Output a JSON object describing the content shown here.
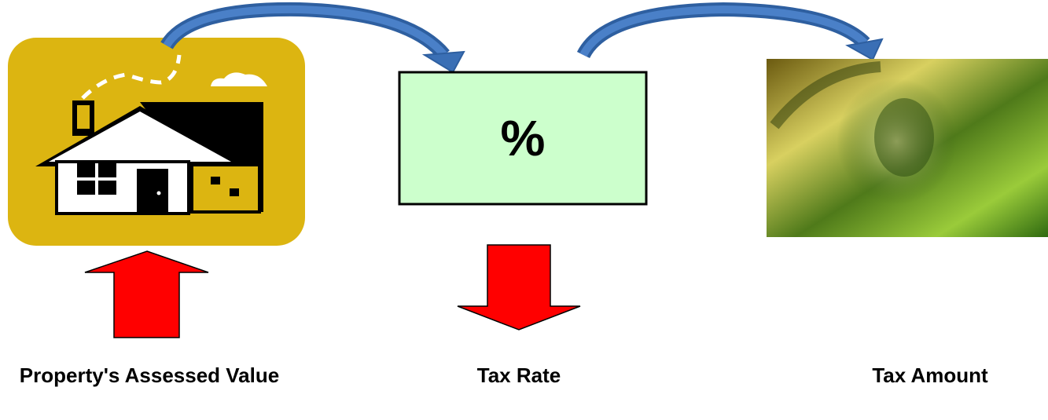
{
  "steps": [
    {
      "label": "Property's Assessed Value"
    },
    {
      "label": "Tax Rate",
      "symbol": "%"
    },
    {
      "label": "Tax Amount"
    }
  ]
}
